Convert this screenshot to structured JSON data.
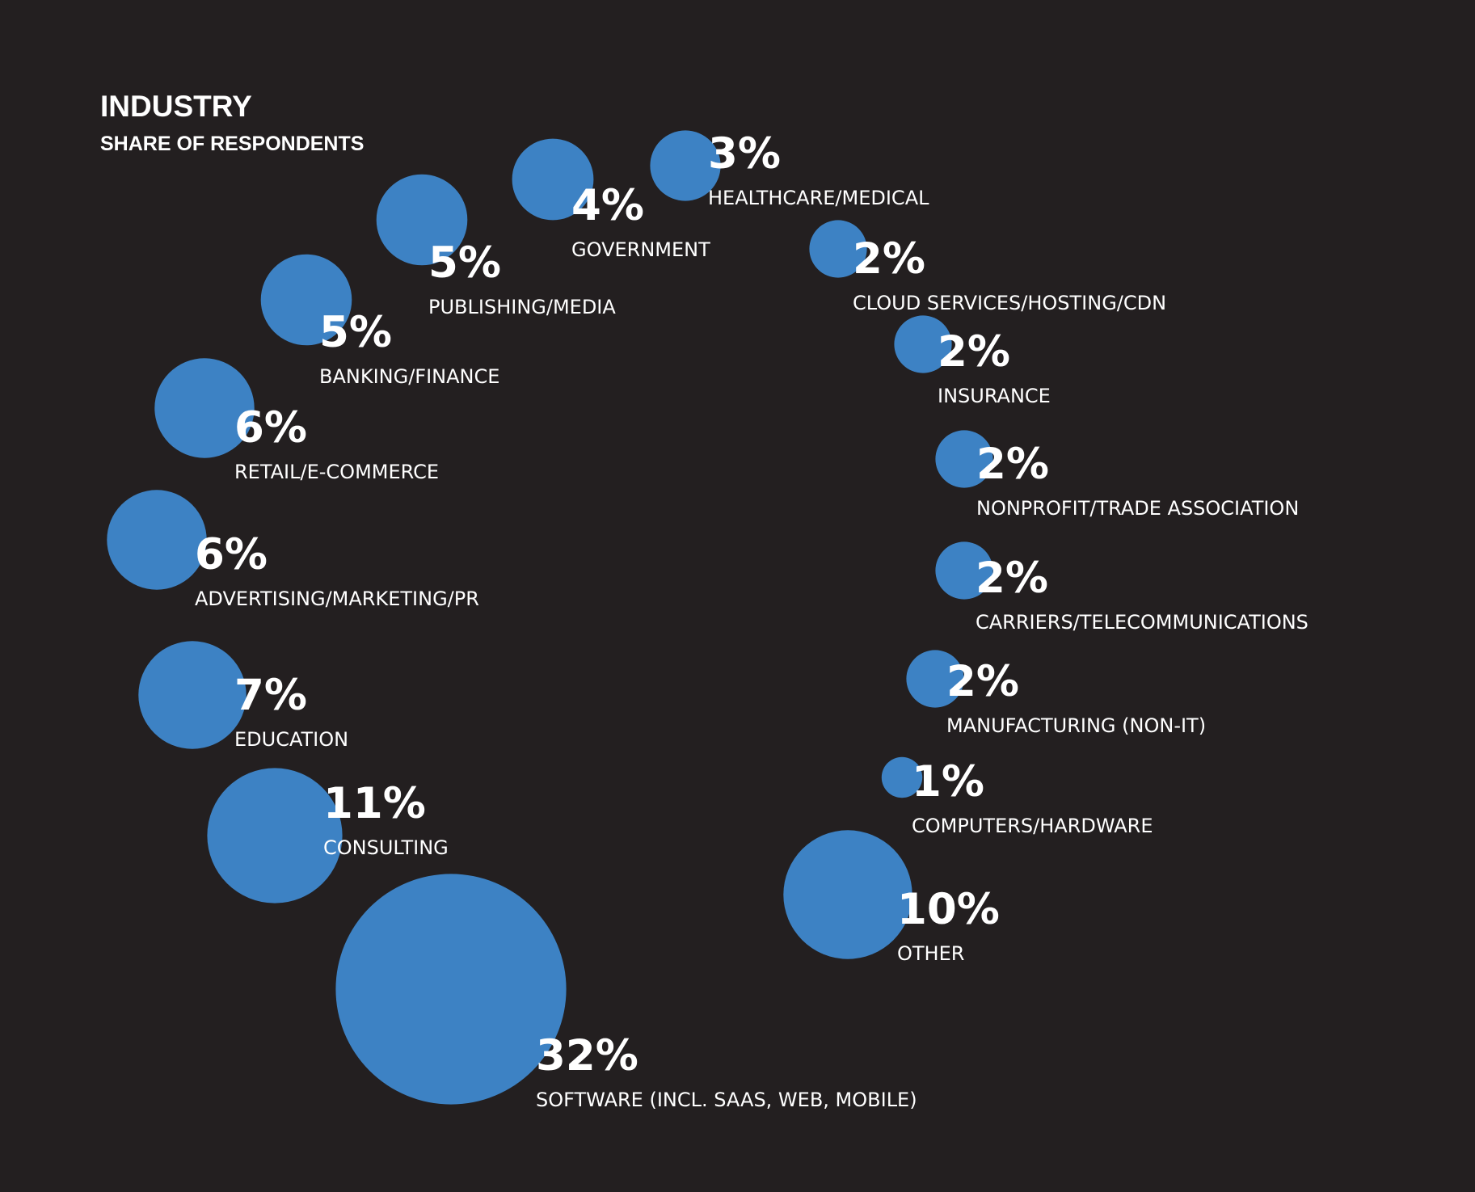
{
  "chart_data": {
    "type": "bubble",
    "title": "INDUSTRY",
    "subtitle": "SHARE OF RESPONDENTS",
    "unit": "%",
    "categories": [
      "SOFTWARE (INCL. SAAS, WEB, MOBILE)",
      "CONSULTING",
      "EDUCATION",
      "ADVERTISING/MARKETING/PR",
      "RETAIL/E-COMMERCE",
      "BANKING/FINANCE",
      "PUBLISHING/MEDIA",
      "GOVERNMENT",
      "HEALTHCARE/MEDICAL",
      "CLOUD SERVICES/HOSTING/CDN",
      "INSURANCE",
      "NONPROFIT/TRADE ASSOCIATION",
      "CARRIERS/TELECOMMUNICATIONS",
      "MANUFACTURING (NON-IT)",
      "COMPUTERS/HARDWARE",
      "OTHER"
    ],
    "values": [
      32,
      11,
      7,
      6,
      6,
      5,
      5,
      4,
      3,
      2,
      2,
      2,
      2,
      2,
      1,
      10
    ],
    "labels": [
      "32%",
      "11%",
      "7%",
      "6%",
      "6%",
      "5%",
      "5%",
      "4%",
      "3%",
      "2%",
      "2%",
      "2%",
      "2%",
      "2%",
      "1%",
      "10%"
    ]
  },
  "colors": {
    "background": "#231f20",
    "bubble": "#3d82c4",
    "text": "#ffffff"
  }
}
